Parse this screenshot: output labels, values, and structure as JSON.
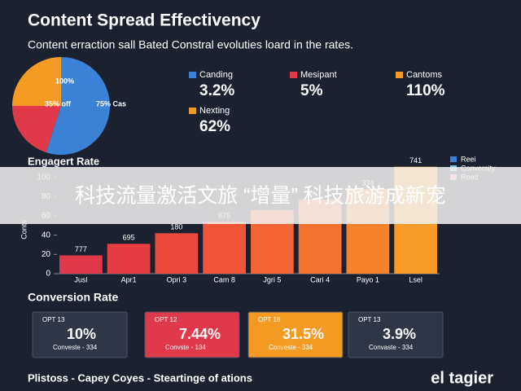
{
  "title": "Content Spread Effectivency",
  "subtitle": "Content erraction sall Bated Constral evoluties loard in the rates.",
  "metrics": [
    {
      "label": "Canding",
      "value": "3.2%",
      "color": "#3b82d6"
    },
    {
      "label": "Mesipant",
      "value": "5%",
      "color": "#e0394a"
    },
    {
      "label": "Cantoms",
      "value": "110%",
      "color": "#f59a23"
    },
    {
      "label": "Nexting",
      "value": "62%",
      "color": "#f59a23"
    }
  ],
  "chart_data": [
    {
      "type": "pie",
      "values": [
        55,
        20,
        25
      ],
      "colors": [
        "#3b82d6",
        "#e0394a",
        "#f59a23"
      ],
      "annotations": [
        "75% Cas",
        "35% off",
        "100%"
      ]
    },
    {
      "type": "bar",
      "title": "Engagert Rate",
      "y_label": "Conts",
      "categories": [
        "Jusl",
        "Apr1",
        "Opri 3",
        "Cam 8",
        "Jgri 5",
        "Cari 4",
        "Payo 1",
        "Lsel"
      ],
      "values": [
        19,
        31,
        42,
        54,
        66,
        77,
        88,
        111
      ],
      "colors": [
        "#e0394a",
        "#e63d45",
        "#ec4a3f",
        "#f0553a",
        "#f26335",
        "#f47230",
        "#f6832b",
        "#f89a26"
      ],
      "annotations": [
        "777",
        "695",
        "180",
        "675",
        "334",
        "741"
      ],
      "ylim": [
        0,
        115
      ],
      "yticks": [
        0,
        20,
        40,
        60,
        80,
        100
      ],
      "legend": [
        {
          "name": "Reei",
          "color": "#3b82d6"
        },
        {
          "name": "Conversity",
          "color": "#7cc0e8"
        },
        {
          "name": "Roed",
          "color": "#e88aa0"
        }
      ]
    }
  ],
  "conversion": {
    "title": "Conversion Rate",
    "cards": [
      {
        "label": "OPT 13",
        "value": "10%",
        "note": "Conveste - 334",
        "color": "#2f3646"
      },
      {
        "label": "OPT 12",
        "value": "7.44%",
        "note": "Convste - 134",
        "color": "#e0394a"
      },
      {
        "label": "OPT 18",
        "value": "31.5%",
        "note": "Conveste - 334",
        "color": "#f59a23"
      },
      {
        "label": "OPT 13",
        "value": "3.9%",
        "note": "Convaste - 334",
        "color": "#2f3646"
      }
    ]
  },
  "footer": "Plistoss - Capey Coyes - Steartinge of ations",
  "brand": "el tagier",
  "banner": "科技流量激活文旅 “增量” 科技旅游成新宠"
}
